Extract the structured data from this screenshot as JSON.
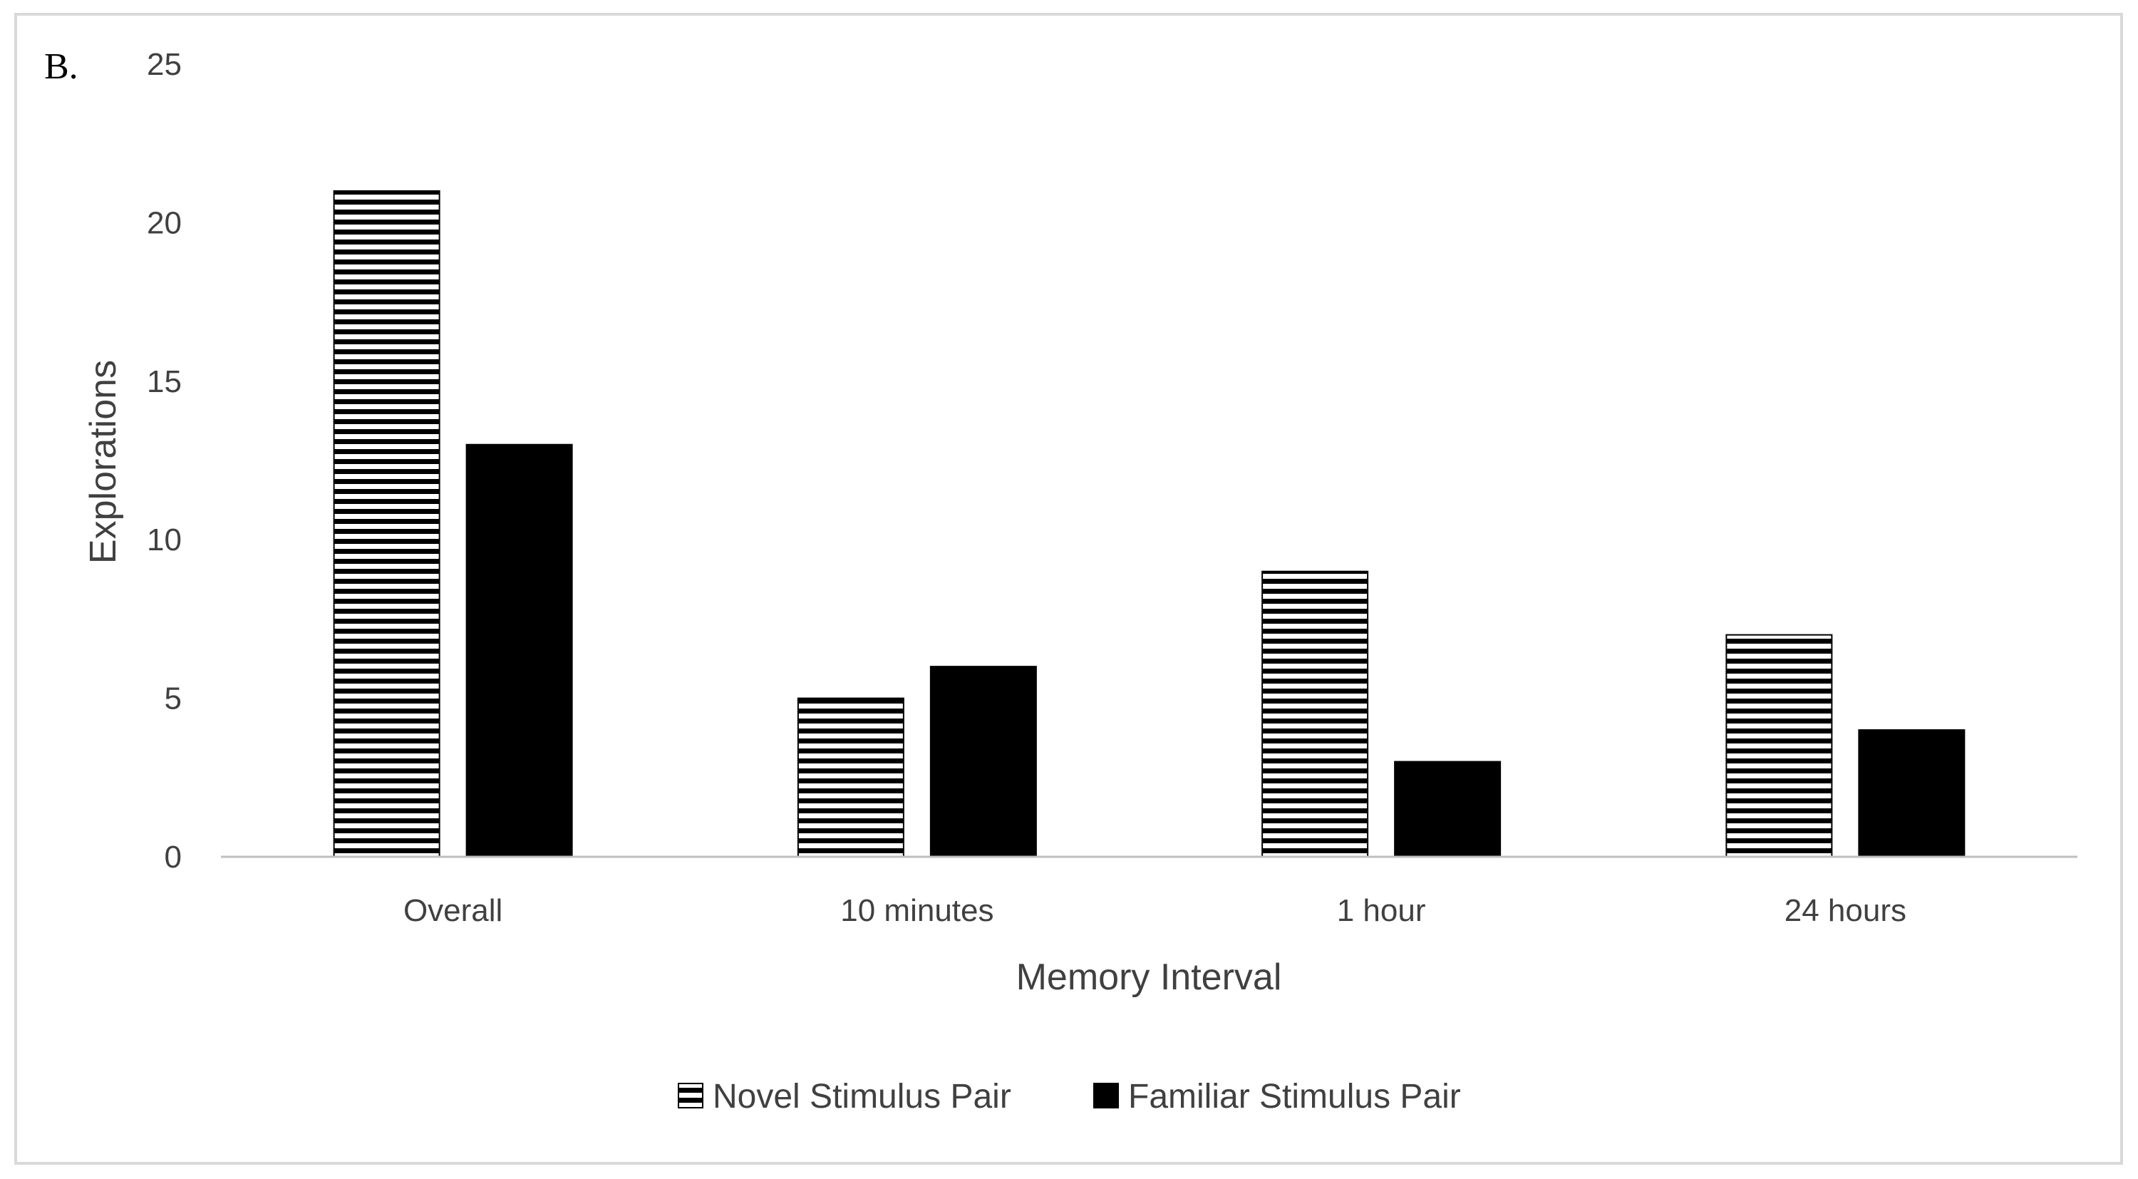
{
  "panel_label": "B.",
  "colors": {
    "familiar_fill": "#000000",
    "novel_stripe": "#000000",
    "novel_background": "#ffffff",
    "axis_line": "#bfbfbf",
    "text": "#404040",
    "frame": "#d9d9d9"
  },
  "chart_data": {
    "type": "bar",
    "title": "",
    "xlabel": "Memory Interval",
    "ylabel": "Explorations",
    "ylim": [
      0,
      25
    ],
    "yticks": [
      0,
      5,
      10,
      15,
      20,
      25
    ],
    "grid": false,
    "legend_position": "bottom",
    "categories": [
      "Overall",
      "10 minutes",
      "1 hour",
      "24 hours"
    ],
    "series": [
      {
        "name": "Novel Stimulus Pair",
        "pattern": "horizontal-stripes",
        "values": [
          21,
          5,
          9,
          7
        ]
      },
      {
        "name": "Familiar Stimulus Pair",
        "pattern": "solid-black",
        "values": [
          13,
          6,
          3,
          4
        ]
      }
    ]
  }
}
